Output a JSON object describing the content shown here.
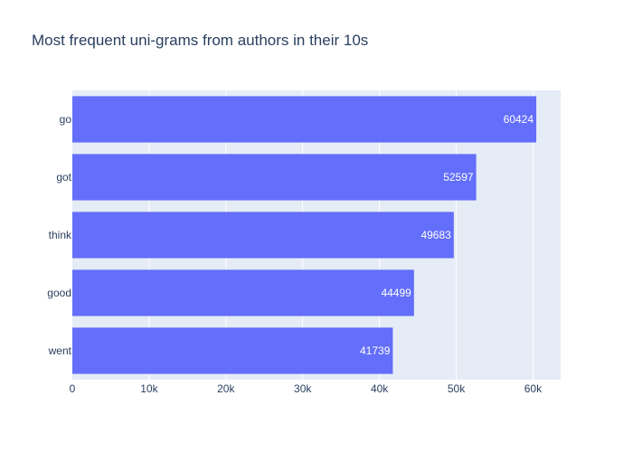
{
  "chart_data": {
    "type": "bar",
    "orientation": "horizontal",
    "title": "Most frequent uni-grams from authors in their 10s",
    "xlabel": "",
    "ylabel": "",
    "categories": [
      "went",
      "good",
      "think",
      "got",
      "go"
    ],
    "values": [
      41739,
      44499,
      49683,
      52597,
      60424
    ],
    "xlim": [
      0,
      63600
    ],
    "xticks": [
      {
        "value": 0,
        "label": "0"
      },
      {
        "value": 10000,
        "label": "10k"
      },
      {
        "value": 20000,
        "label": "20k"
      },
      {
        "value": 30000,
        "label": "30k"
      },
      {
        "value": 40000,
        "label": "40k"
      },
      {
        "value": 50000,
        "label": "50k"
      },
      {
        "value": 60000,
        "label": "60k"
      }
    ],
    "grid": true,
    "colors": {
      "bar": "#636efa",
      "plot_background": "#e5ecf6",
      "grid": "#ffffff",
      "text": "#2a3f5f",
      "data_label": "#ffffff"
    }
  }
}
